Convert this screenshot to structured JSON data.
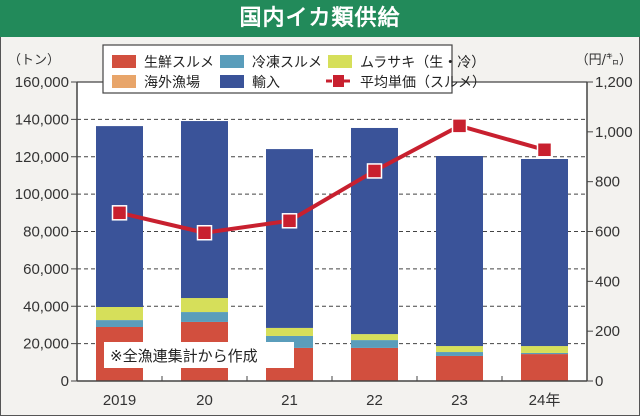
{
  "title": "国内イカ類供給",
  "chart_data": {
    "type": "bar",
    "stacked": true,
    "title": "国内イカ類供給",
    "categories": [
      "2019",
      "20",
      "21",
      "22",
      "23",
      "24年"
    ],
    "left_axis": {
      "unit_label": "（トン）",
      "ylim": [
        0,
        160000
      ],
      "ticks": [
        0,
        20000,
        40000,
        60000,
        80000,
        100000,
        120000,
        140000,
        160000
      ],
      "tick_labels": [
        "0",
        "20,000",
        "40,000",
        "60,000",
        "80,000",
        "100,000",
        "120,000",
        "140,000",
        "160,000"
      ]
    },
    "right_axis": {
      "unit_label": "（円/㌔）",
      "ylim": [
        0,
        1200
      ],
      "ticks": [
        0,
        200,
        400,
        600,
        800,
        1000,
        1200
      ],
      "tick_labels": [
        "0",
        "200",
        "400",
        "600",
        "800",
        "1,000",
        "1,200"
      ]
    },
    "grid": true,
    "legend_position": "top",
    "series": [
      {
        "name": "生鮮スルメ",
        "type": "bar",
        "color": "#d24f3e",
        "values": [
          28900,
          31600,
          17700,
          17700,
          13400,
          14400
        ]
      },
      {
        "name": "海外漁場",
        "type": "bar",
        "color": "#e8a56a",
        "values": [
          0,
          0,
          0,
          0,
          0,
          0
        ]
      },
      {
        "name": "冷凍スルメ",
        "type": "bar",
        "color": "#5a9dbb",
        "values": [
          3700,
          5300,
          6400,
          4200,
          2100,
          600
        ]
      },
      {
        "name": "ムラサキ（生・冷）",
        "type": "bar",
        "color": "#d6df5a",
        "values": [
          7000,
          7500,
          4300,
          3200,
          3200,
          3700
        ]
      },
      {
        "name": "輸入",
        "type": "bar",
        "color": "#3a5399",
        "values": [
          96800,
          94700,
          95700,
          110300,
          101700,
          100100
        ]
      },
      {
        "name": "平均単価（スルメ）",
        "type": "line",
        "axis": "right",
        "color": "#c8202f",
        "values": [
          675,
          595,
          643,
          843,
          1024,
          928
        ]
      }
    ],
    "annotation": "※全漁連集計から作成"
  }
}
